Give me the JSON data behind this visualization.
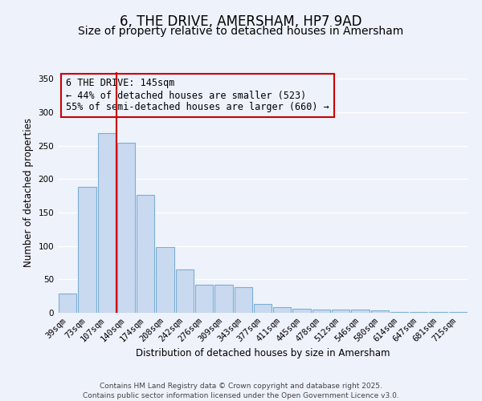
{
  "title": "6, THE DRIVE, AMERSHAM, HP7 9AD",
  "subtitle": "Size of property relative to detached houses in Amersham",
  "xlabel": "Distribution of detached houses by size in Amersham",
  "ylabel": "Number of detached properties",
  "bar_labels": [
    "39sqm",
    "73sqm",
    "107sqm",
    "140sqm",
    "174sqm",
    "208sqm",
    "242sqm",
    "276sqm",
    "309sqm",
    "343sqm",
    "377sqm",
    "411sqm",
    "445sqm",
    "478sqm",
    "512sqm",
    "546sqm",
    "580sqm",
    "614sqm",
    "647sqm",
    "681sqm",
    "715sqm"
  ],
  "bar_values": [
    29,
    188,
    269,
    255,
    176,
    99,
    65,
    42,
    42,
    38,
    13,
    9,
    6,
    5,
    5,
    5,
    4,
    1,
    1,
    1,
    1
  ],
  "bar_color": "#c9d9f0",
  "bar_edgecolor": "#7bafd4",
  "vline_color": "#cc0000",
  "annotation_title": "6 THE DRIVE: 145sqm",
  "annotation_line1": "← 44% of detached houses are smaller (523)",
  "annotation_line2": "55% of semi-detached houses are larger (660) →",
  "annotation_box_edgecolor": "#cc0000",
  "ylim": [
    0,
    360
  ],
  "yticks": [
    0,
    50,
    100,
    150,
    200,
    250,
    300,
    350
  ],
  "footer1": "Contains HM Land Registry data © Crown copyright and database right 2025.",
  "footer2": "Contains public sector information licensed under the Open Government Licence v3.0.",
  "background_color": "#eef2fb",
  "grid_color": "#ffffff",
  "title_fontsize": 12,
  "subtitle_fontsize": 10,
  "axis_label_fontsize": 8.5,
  "tick_fontsize": 7.5,
  "annotation_fontsize": 8.5,
  "footer_fontsize": 6.5
}
